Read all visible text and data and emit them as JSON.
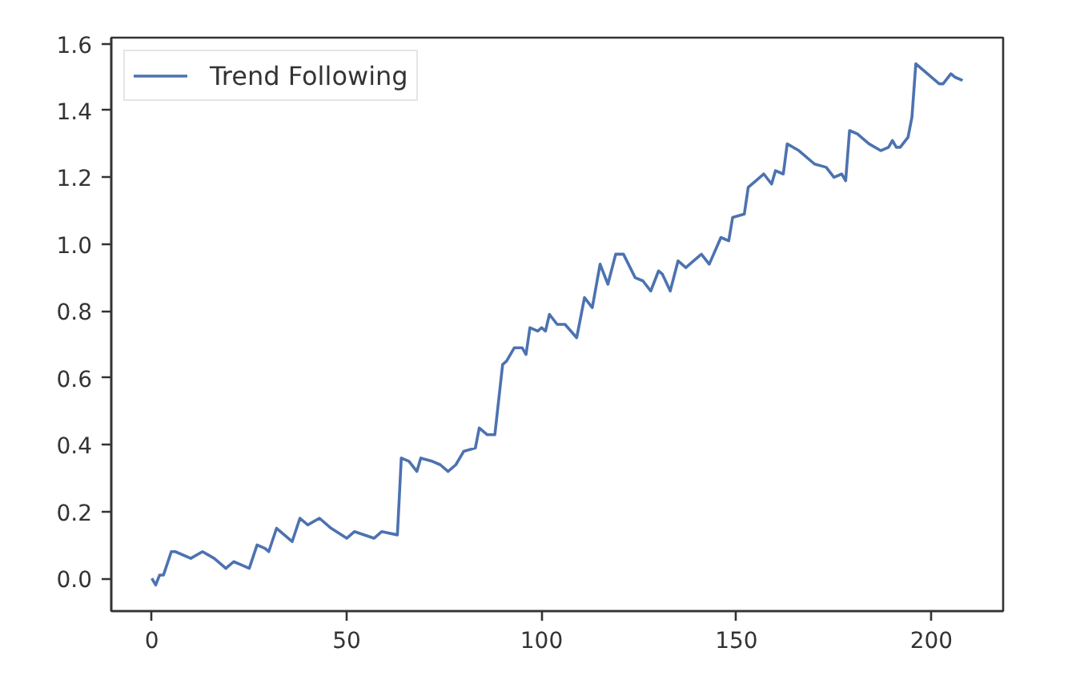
{
  "chart_data": {
    "type": "line",
    "series": [
      {
        "name": "Trend Following",
        "color": "#4c72b0",
        "x": [
          0,
          1,
          2,
          3,
          5,
          6,
          10,
          13,
          16,
          19,
          21,
          23,
          25,
          27,
          29,
          30,
          32,
          34,
          36,
          38,
          40,
          43,
          46,
          50,
          52,
          57,
          59,
          63,
          64,
          66,
          68,
          69,
          72,
          74,
          76,
          78,
          80,
          83,
          84,
          86,
          88,
          90,
          91,
          93,
          95,
          96,
          97,
          99,
          100,
          101,
          102,
          104,
          106,
          109,
          111,
          113,
          115,
          116,
          117,
          119,
          121,
          124,
          126,
          128,
          130,
          131,
          133,
          135,
          137,
          139,
          141,
          143,
          146,
          148,
          149,
          152,
          153,
          155,
          157,
          159,
          160,
          162,
          163,
          166,
          170,
          173,
          175,
          177,
          178,
          179,
          181,
          184,
          187,
          189,
          190,
          191,
          192,
          194,
          195,
          196,
          199,
          202,
          203,
          205,
          206,
          208
        ],
        "values": [
          0.0,
          -0.02,
          0.01,
          0.01,
          0.08,
          0.08,
          0.06,
          0.08,
          0.06,
          0.03,
          0.05,
          0.04,
          0.03,
          0.1,
          0.09,
          0.08,
          0.15,
          0.13,
          0.11,
          0.18,
          0.16,
          0.18,
          0.15,
          0.12,
          0.14,
          0.12,
          0.14,
          0.13,
          0.36,
          0.35,
          0.32,
          0.36,
          0.35,
          0.34,
          0.32,
          0.34,
          0.38,
          0.39,
          0.45,
          0.43,
          0.43,
          0.64,
          0.65,
          0.69,
          0.69,
          0.67,
          0.75,
          0.74,
          0.75,
          0.74,
          0.79,
          0.76,
          0.76,
          0.72,
          0.84,
          0.81,
          0.94,
          0.91,
          0.88,
          0.97,
          0.97,
          0.9,
          0.89,
          0.86,
          0.92,
          0.91,
          0.86,
          0.95,
          0.93,
          0.95,
          0.97,
          0.94,
          1.02,
          1.01,
          1.08,
          1.09,
          1.17,
          1.19,
          1.21,
          1.18,
          1.22,
          1.21,
          1.3,
          1.28,
          1.24,
          1.23,
          1.2,
          1.21,
          1.19,
          1.34,
          1.33,
          1.3,
          1.28,
          1.29,
          1.31,
          1.29,
          1.29,
          1.32,
          1.38,
          1.54,
          1.51,
          1.48,
          1.48,
          1.51,
          1.5,
          1.49
        ]
      }
    ],
    "xlim": [
      -10.4,
      218.4
    ],
    "ylim": [
      -0.098,
      1.618
    ],
    "xticks": [
      0,
      50,
      100,
      150,
      200
    ],
    "yticks": [
      {
        "value": 0,
        "label": "0.0"
      },
      0.2,
      0.4,
      0.6,
      0.8,
      {
        "value": 1,
        "label": "1.0"
      },
      1.2,
      1.4,
      1.6
    ],
    "legend": "top left"
  }
}
